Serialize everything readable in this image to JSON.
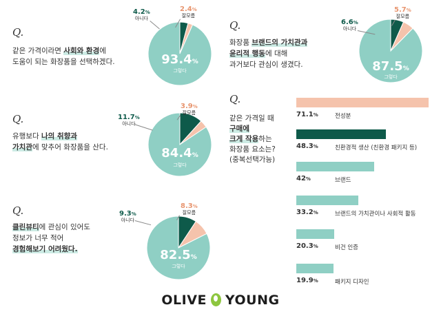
{
  "colors": {
    "teal": "#8fcfc4",
    "dark_green": "#0e5a4a",
    "peach": "#f5c3ac",
    "peach_text": "#e8956f"
  },
  "chart_data": [
    {
      "type": "pie",
      "question": [
        "같은 가격이라면 ",
        "사회와 환경",
        "에",
        "도움이 되는 화장품을 선택하겠다."
      ],
      "slices": [
        {
          "label": "그렇다",
          "value": 93.4
        },
        {
          "label": "아니다",
          "value": 4.2
        },
        {
          "label": "잘모름",
          "value": 2.4
        }
      ]
    },
    {
      "type": "pie",
      "question": [
        "유행보다 ",
        "나의 취향과",
        "가치관",
        "에 맞추어 화장품을 산다."
      ],
      "slices": [
        {
          "label": "그렇다",
          "value": 84.4
        },
        {
          "label": "아니다",
          "value": 11.7
        },
        {
          "label": "잘모름",
          "value": 3.9
        }
      ]
    },
    {
      "type": "pie",
      "question": [
        "클린뷰티",
        "에 관심이 있어도",
        "정보가 너무 적어",
        "경험해보기 어려웠다."
      ],
      "slices": [
        {
          "label": "그렇다",
          "value": 82.5
        },
        {
          "label": "아니다",
          "value": 9.3
        },
        {
          "label": "잘모름",
          "value": 8.3
        }
      ]
    },
    {
      "type": "pie",
      "question": [
        "화장품 ",
        "브랜드의 가치관과",
        "윤리적 행동",
        "에 대해",
        "과거보다 관심이 생겼다."
      ],
      "slices": [
        {
          "label": "그렇다",
          "value": 87.5
        },
        {
          "label": "아니다",
          "value": 6.6
        },
        {
          "label": "잘모름",
          "value": 5.7
        }
      ]
    },
    {
      "type": "bar",
      "question": [
        "같은 가격일 때",
        "구매에",
        "크게 작용",
        "하는",
        "화장품 요소는?",
        "(중복선택가능)"
      ],
      "categories": [
        "전성분",
        "친환경적 생산 (친환경 패키지 등)",
        "브랜드",
        "브랜드의 가치관이나 사회적 활동",
        "비건 인증",
        "패키지 디자인"
      ],
      "values": [
        71.1,
        48.3,
        42,
        33.2,
        20.3,
        19.9
      ],
      "xlim": [
        0,
        71.1
      ]
    }
  ],
  "labels": {
    "q_mark": "Q.",
    "unit": "%"
  },
  "logo": {
    "left": "OLIVE",
    "right": "YOUNG"
  }
}
